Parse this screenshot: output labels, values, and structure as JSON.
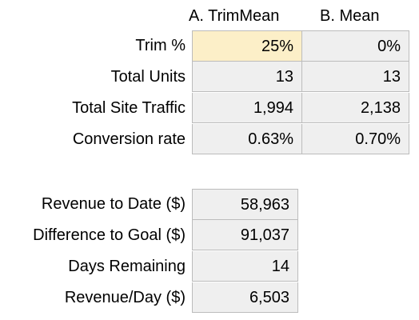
{
  "colors": {
    "cell_fill": "#efefef",
    "highlight_fill": "#fcefc8",
    "grid_line": "#bcbcbc"
  },
  "headers": {
    "col_a": "A. TrimMean",
    "col_b": "B. Mean"
  },
  "metrics": [
    {
      "label": "Trim %",
      "a": "25%",
      "b": "0%"
    },
    {
      "label": "Total Units",
      "a": "13",
      "b": "13"
    },
    {
      "label": "Total Site Traffic",
      "a": "1,994",
      "b": "2,138"
    },
    {
      "label": "Conversion rate",
      "a": "0.63%",
      "b": "0.70%"
    }
  ],
  "summary": [
    {
      "label": "Revenue to Date ($)",
      "value": "58,963"
    },
    {
      "label": "Difference to Goal ($)",
      "value": "91,037"
    },
    {
      "label": "Days Remaining",
      "value": "14"
    },
    {
      "label": "Revenue/Day ($)",
      "value": "6,503"
    }
  ]
}
